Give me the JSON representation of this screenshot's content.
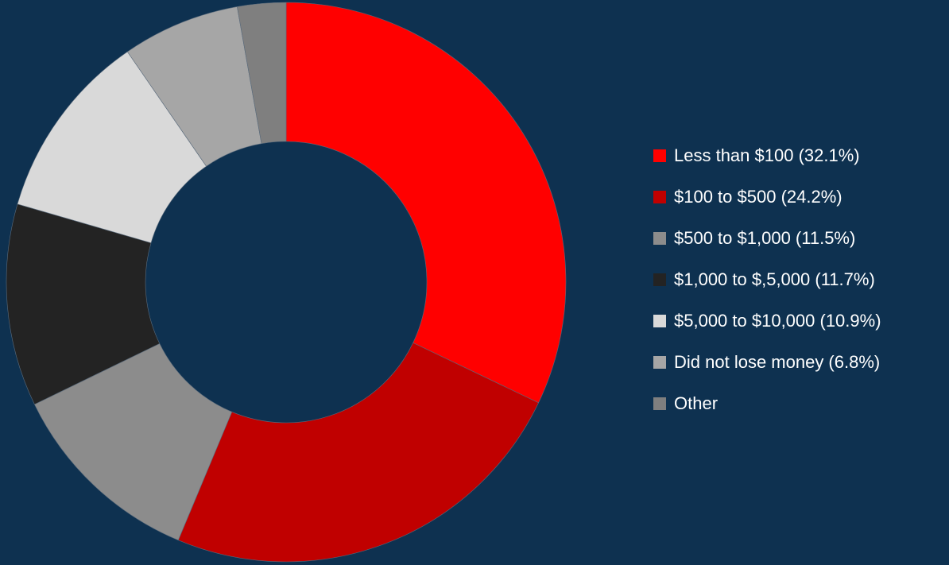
{
  "chart_data": {
    "type": "donut",
    "categories": [
      "Less than $100 (32.1%)",
      "$100 to $500 (24.2%)",
      "$500 to $1,000 (11.5%)",
      "$1,000 to $,5,000 (11.7%)",
      "$5,000 to $10,000 (10.9%)",
      "Did not lose money (6.8%)",
      "Other"
    ],
    "values": [
      32.1,
      24.2,
      11.5,
      11.7,
      10.9,
      6.8,
      2.8
    ],
    "colors": [
      "#ff0000",
      "#c00000",
      "#8c8c8c",
      "#232323",
      "#d9d9d9",
      "#a6a6a6",
      "#7f7f7f"
    ],
    "legend": "right"
  }
}
